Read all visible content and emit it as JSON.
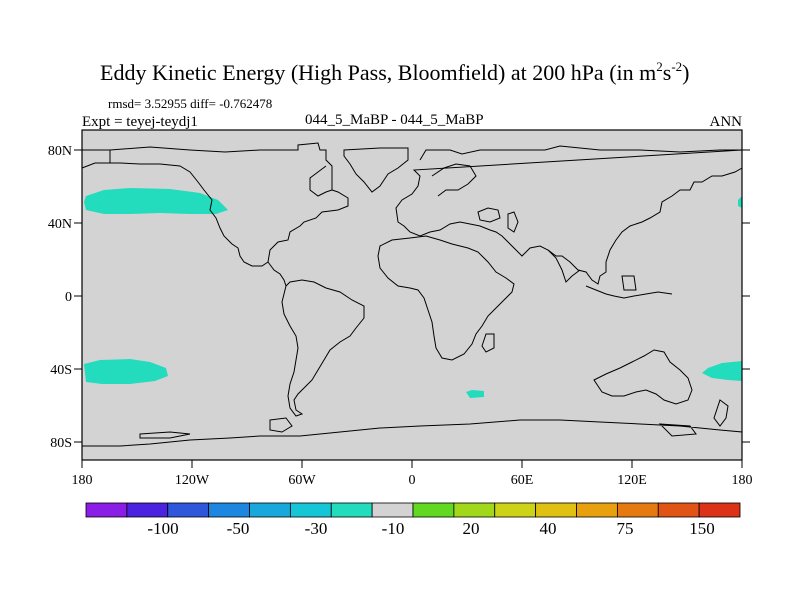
{
  "title": {
    "main": "Eddy Kinetic Energy (High Pass, Bloomfield) at 200 hPa (in m",
    "sup1": "2",
    "mid": "s",
    "sup2": "-2",
    "close": ")"
  },
  "stats": {
    "rmsd_diff": "rmsd= 3.52955 diff= -0.762478",
    "expt": "Expt = teyej-teydj1",
    "case": "044_5_MaBP - 044_5_MaBP",
    "period": "ANN"
  },
  "map": {
    "lat_labels": [
      "80N",
      "40N",
      "0",
      "40S",
      "80S"
    ],
    "lon_labels": [
      "180",
      "120W",
      "60W",
      "0",
      "60E",
      "120E",
      "180"
    ],
    "background_color": "#d3d3d3",
    "anomaly_color": "#22dcbd",
    "coastline_color": "#000000"
  },
  "colorbar": {
    "colors": [
      "#8a1ee6",
      "#4b22e0",
      "#2e57dc",
      "#1c86e0",
      "#19a8dc",
      "#16c6d6",
      "#22dcbd",
      "#d3d3d3",
      "#63d820",
      "#a2d81c",
      "#cdd418",
      "#e0c010",
      "#e8a00e",
      "#e67a10",
      "#e05416",
      "#dc3218"
    ],
    "labels": [
      "-100",
      "-50",
      "-30",
      "-10",
      "20",
      "40",
      "75",
      "150"
    ]
  }
}
